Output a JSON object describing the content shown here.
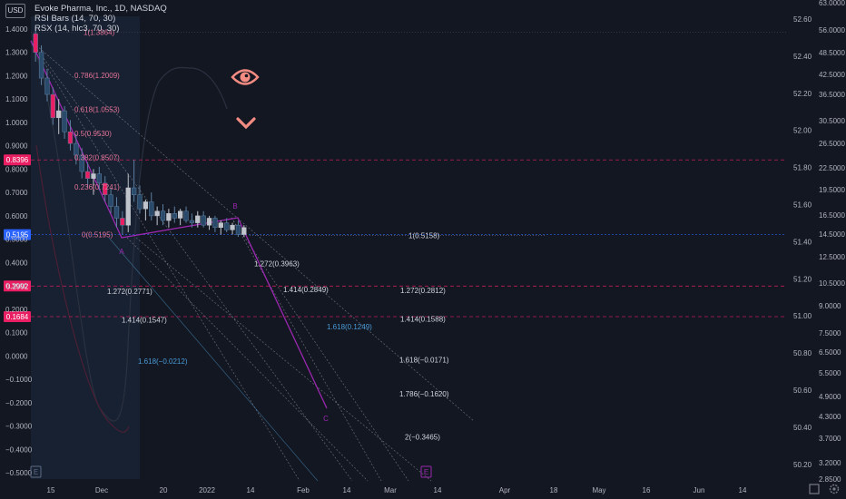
{
  "header": {
    "currency_badge": "USD",
    "lines": [
      "Evoke Pharma, Inc., 1D, NASDAQ",
      "RSI Bars (14, 70, 30)",
      "RSX (14, hlc3, 70, 30)"
    ]
  },
  "chart_data": {
    "type": "candlestick",
    "title": "Evoke Pharma, Inc., 1D, NASDAQ",
    "left_axis_ticks": [
      "1.4000",
      "1.3000",
      "1.2000",
      "1.1000",
      "1.0000",
      "0.9000",
      "0.8000",
      "0.7000",
      "0.6000",
      "0.5000",
      "0.4000",
      "0.3000",
      "0.2000",
      "0.1000",
      "0.0000",
      "−0.1000",
      "−0.2000",
      "−0.3000",
      "−0.4000",
      "−0.5000"
    ],
    "left_axis_range": [
      -0.5,
      1.4
    ],
    "right_axis_outer_ticks": [
      "63.0000",
      "56.0000",
      "48.5000",
      "42.5000",
      "36.5000",
      "30.5000",
      "26.5000",
      "22.5000",
      "19.5000",
      "16.5000",
      "14.5000",
      "12.5000",
      "10.5000",
      "9.0000",
      "7.5000",
      "6.5000",
      "5.5000",
      "4.9000",
      "4.3000",
      "3.7000",
      "3.2000",
      "2.8500"
    ],
    "right_axis_inner_ticks": [
      "52.60",
      "52.40",
      "52.20",
      "52.00",
      "51.80",
      "51.60",
      "51.40",
      "51.20",
      "51.00",
      "50.80",
      "50.60",
      "50.40",
      "50.20"
    ],
    "x_ticks": [
      "15",
      "Dec",
      "20",
      "2022",
      "14",
      "Feb",
      "14",
      "Mar",
      "14",
      "Apr",
      "18",
      "May",
      "16",
      "Jun",
      "14"
    ],
    "price_badges": [
      {
        "label": "0.8396",
        "value": 0.8396,
        "color": "#e91e63"
      },
      {
        "label": "0.5195",
        "value": 0.5195,
        "color": "#2962ff"
      },
      {
        "label": "0.2992",
        "value": 0.2992,
        "color": "#e91e63"
      },
      {
        "label": "0.1684",
        "value": 0.1684,
        "color": "#e91e63"
      }
    ],
    "candles": [
      [
        1.38,
        1.41,
        1.26,
        1.3
      ],
      [
        1.3,
        1.33,
        1.16,
        1.19
      ],
      [
        1.19,
        1.23,
        1.09,
        1.12
      ],
      [
        1.12,
        1.15,
        0.99,
        1.02
      ],
      [
        1.02,
        1.1,
        0.95,
        1.05
      ],
      [
        1.05,
        1.07,
        0.93,
        0.96
      ],
      [
        0.96,
        1.01,
        0.88,
        0.91
      ],
      [
        0.91,
        0.95,
        0.82,
        0.86
      ],
      [
        0.86,
        0.89,
        0.76,
        0.79
      ],
      [
        0.79,
        0.83,
        0.72,
        0.76
      ],
      [
        0.76,
        0.8,
        0.69,
        0.78
      ],
      [
        0.78,
        0.81,
        0.71,
        0.74
      ],
      [
        0.74,
        0.77,
        0.66,
        0.69
      ],
      [
        0.69,
        0.72,
        0.61,
        0.64
      ],
      [
        0.64,
        0.68,
        0.55,
        0.59
      ],
      [
        0.59,
        0.62,
        0.52,
        0.56
      ],
      [
        0.56,
        0.78,
        0.53,
        0.72
      ],
      [
        0.72,
        0.84,
        0.66,
        0.69
      ],
      [
        0.69,
        0.73,
        0.61,
        0.63
      ],
      [
        0.63,
        0.67,
        0.58,
        0.66
      ],
      [
        0.66,
        0.7,
        0.58,
        0.6
      ],
      [
        0.6,
        0.64,
        0.56,
        0.62
      ],
      [
        0.62,
        0.65,
        0.56,
        0.58
      ],
      [
        0.58,
        0.63,
        0.55,
        0.61
      ],
      [
        0.61,
        0.64,
        0.57,
        0.59
      ],
      [
        0.59,
        0.63,
        0.56,
        0.62
      ],
      [
        0.62,
        0.64,
        0.57,
        0.58
      ],
      [
        0.58,
        0.61,
        0.55,
        0.57
      ],
      [
        0.57,
        0.62,
        0.55,
        0.6
      ],
      [
        0.6,
        0.62,
        0.55,
        0.56
      ],
      [
        0.56,
        0.6,
        0.54,
        0.59
      ],
      [
        0.59,
        0.6,
        0.53,
        0.55
      ],
      [
        0.55,
        0.58,
        0.52,
        0.57
      ],
      [
        0.57,
        0.59,
        0.53,
        0.54
      ],
      [
        0.54,
        0.57,
        0.52,
        0.56
      ],
      [
        0.56,
        0.58,
        0.51,
        0.52
      ],
      [
        0.52,
        0.56,
        0.51,
        0.55
      ]
    ],
    "fib_retracement_labels": [
      {
        "text": "1(1.3864)",
        "value": 1.3864
      },
      {
        "text": "0.786(1.2009)",
        "value": 1.2009
      },
      {
        "text": "0.618(1.0553)",
        "value": 1.0553
      },
      {
        "text": "0.5(0.9530)",
        "value": 0.953
      },
      {
        "text": "0.382(0.8507)",
        "value": 0.8507
      },
      {
        "text": "0.236(0.7241)",
        "value": 0.7241
      },
      {
        "text": "0(0.5195)",
        "value": 0.5195
      }
    ],
    "extension_labels": [
      {
        "text": "1(0.5158)",
        "value": 0.5158
      },
      {
        "text": "1.272(0.3963)",
        "value": 0.3963
      },
      {
        "text": "1.414(0.2849)",
        "value": 0.2849
      },
      {
        "text": "1.272(0.2812)",
        "value": 0.2812
      },
      {
        "text": "1.272(0.2771)",
        "value": 0.2771
      },
      {
        "text": "1.414(0.1588)",
        "value": 0.1588
      },
      {
        "text": "1.414(0.1547)",
        "value": 0.1547
      },
      {
        "text": "1.618(0.1249)",
        "value": 0.1249
      },
      {
        "text": "1.618(−0.0171)",
        "value": -0.0171
      },
      {
        "text": "1.618(−0.0212)",
        "value": -0.0212
      },
      {
        "text": "1.786(−0.1620)",
        "value": -0.162
      },
      {
        "text": "2(−0.3465)",
        "value": -0.3465
      }
    ],
    "pattern_points": [
      "A",
      "B",
      "C"
    ],
    "event_markers": [
      "E",
      "E"
    ]
  },
  "icons": {
    "eye": "eye-icon",
    "chevron": "chevron-down-icon",
    "settings": "gear-icon",
    "expand": "expand-icon"
  }
}
